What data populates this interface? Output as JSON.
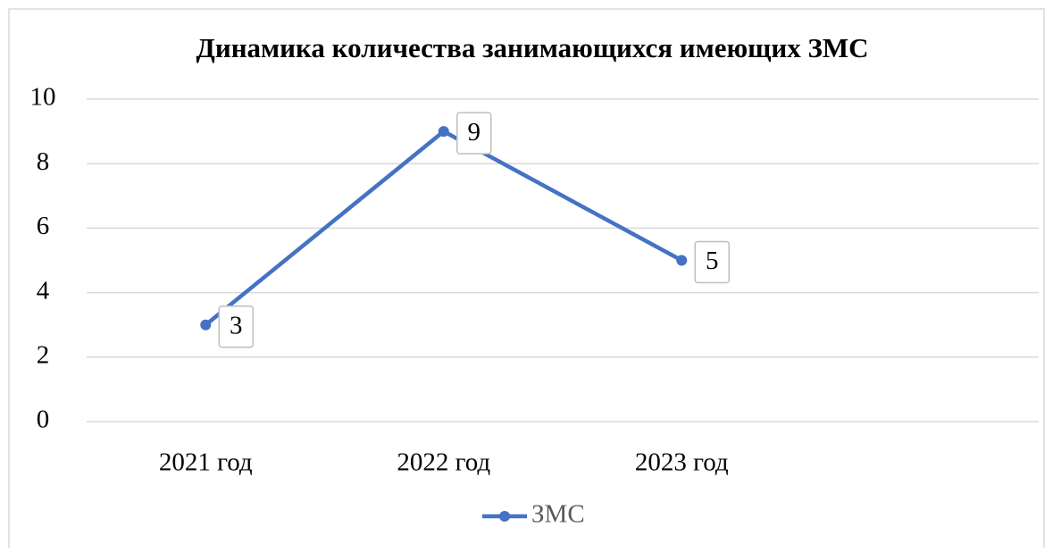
{
  "chart_data": {
    "type": "line",
    "title": "Динамика количества занимающихся имеющих ЗМС",
    "categories": [
      "2021 год",
      "2022 год",
      "2023 год",
      null
    ],
    "series": [
      {
        "name": "ЗМС",
        "color": "#4472c4",
        "values": [
          3,
          9,
          5,
          null
        ]
      }
    ],
    "ylim": [
      0,
      10
    ],
    "yticks": [
      0,
      2,
      4,
      6,
      8,
      10
    ],
    "grid": true,
    "legend": "bottom"
  }
}
